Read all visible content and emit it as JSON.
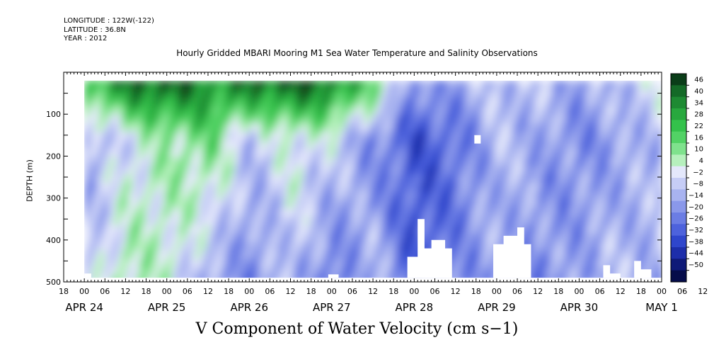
{
  "header": {
    "longitude": "LONGITUDE : 122W(-122)",
    "latitude": "LATITUDE : 36.8N",
    "year": "YEAR : 2012"
  },
  "chart_data": {
    "type": "heatmap",
    "title": "Hourly Gridded MBARI Mooring M1 Sea Water Temperature and Salinity Observations",
    "xlabel": "V Component of Water Velocity (cm s−1)",
    "ylabel": "DEPTH (m)",
    "x_units": "hours from 2012-04-23 18:00",
    "xlim": [
      0,
      174
    ],
    "ylim": [
      500,
      0
    ],
    "data_xlim": [
      6,
      174
    ],
    "data_ylim": [
      20,
      490
    ],
    "y_ticks": [
      100,
      200,
      300,
      400,
      500
    ],
    "x_hour_ticks": [
      "18",
      "00",
      "06",
      "12",
      "18",
      "00",
      "06",
      "12",
      "18",
      "00",
      "06",
      "12",
      "18",
      "00",
      "06",
      "12",
      "18",
      "00",
      "06",
      "12",
      "18",
      "00",
      "06",
      "12",
      "18",
      "00",
      "06",
      "12",
      "18",
      "00",
      "06",
      "12"
    ],
    "x_day_labels": [
      "APR 24",
      "APR 25",
      "APR 26",
      "APR 27",
      "APR 28",
      "APR 29",
      "APR 30",
      "MAY  1"
    ],
    "x_day_label_hours": [
      6,
      30,
      54,
      78,
      102,
      126,
      150,
      174
    ],
    "colorbar": {
      "levels": [
        46,
        40,
        34,
        28,
        22,
        16,
        10,
        4,
        -2,
        -8,
        -14,
        -20,
        -26,
        -32,
        -38,
        -44,
        -50
      ],
      "colors": [
        "#0a3d18",
        "#146a27",
        "#1e8a33",
        "#28a83e",
        "#34c24b",
        "#52d265",
        "#7fe28d",
        "#b6f0bd",
        "#e4e8fb",
        "#c6cdf6",
        "#a8b3f0",
        "#8a98ea",
        "#6b7de4",
        "#4d62dc",
        "#2f46cc",
        "#1d2eaa",
        "#0f1a78",
        "#050c4a"
      ]
    },
    "depth_profile_hourly_means": {
      "hours": [
        6,
        18,
        30,
        42,
        54,
        66,
        78,
        90,
        102,
        114,
        126,
        138,
        150,
        162,
        174
      ],
      "surface_values": [
        22,
        40,
        46,
        34,
        40,
        46,
        40,
        16,
        -20,
        -14,
        -8,
        -8,
        -14,
        -8,
        4
      ],
      "mid_values": [
        -14,
        -2,
        10,
        16,
        -8,
        4,
        -2,
        -20,
        -32,
        -26,
        -8,
        -14,
        -20,
        -14,
        -8
      ],
      "deep_values": [
        -8,
        10,
        4,
        -14,
        -20,
        -8,
        -26,
        -8,
        -32,
        -20,
        -14,
        -20,
        -14,
        -8,
        -14
      ]
    }
  }
}
